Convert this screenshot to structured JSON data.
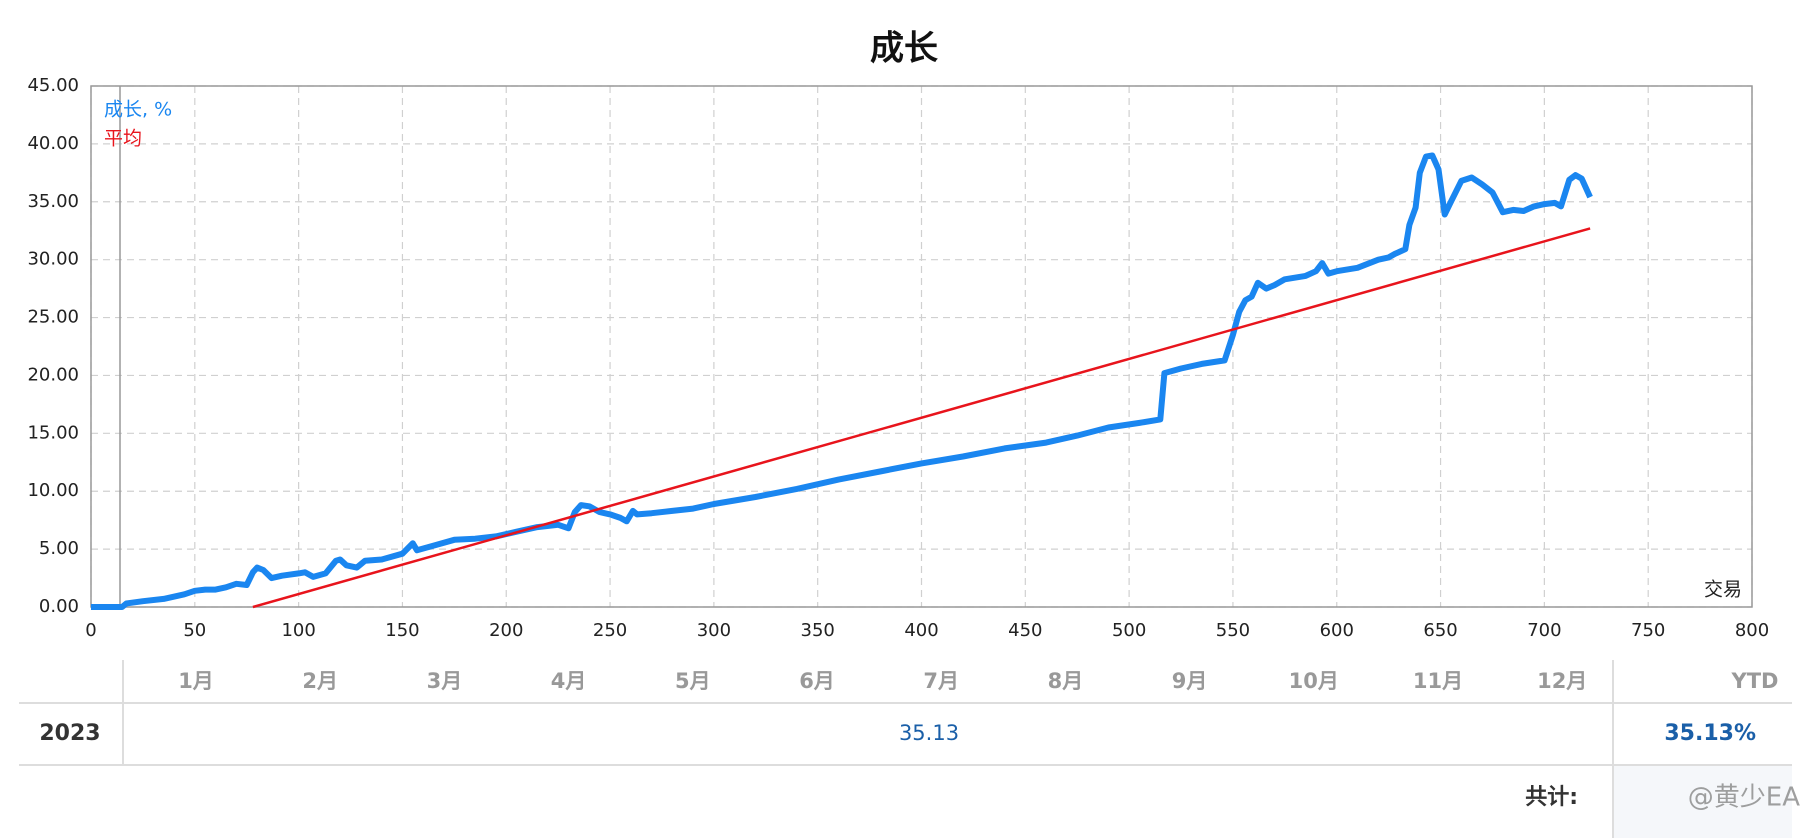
{
  "chart_data": {
    "type": "line",
    "title": "成长",
    "x_label": "交易",
    "xlim": [
      0,
      800
    ],
    "xticks": [
      0,
      50,
      100,
      150,
      200,
      250,
      300,
      350,
      400,
      450,
      500,
      550,
      600,
      650,
      700,
      750,
      800
    ],
    "ylim": [
      0,
      45
    ],
    "yticks": [
      {
        "value": 0,
        "label": "0.00"
      },
      {
        "value": 5,
        "label": "5.00"
      },
      {
        "value": 10,
        "label": "10.00"
      },
      {
        "value": 15,
        "label": "15.00"
      },
      {
        "value": 20,
        "label": "20.00"
      },
      {
        "value": 25,
        "label": "25.00"
      },
      {
        "value": 30,
        "label": "30.00"
      },
      {
        "value": 35,
        "label": "35.00"
      },
      {
        "value": 40,
        "label": "40.00"
      },
      {
        "value": 45,
        "label": "45.00"
      }
    ],
    "grid": true,
    "series": [
      {
        "name": "成长, %",
        "color": "#1a86f0",
        "x": [
          0,
          15,
          17,
          25,
          35,
          45,
          50,
          55,
          60,
          65,
          70,
          75,
          78,
          80,
          83,
          87,
          92,
          100,
          103,
          107,
          113,
          118,
          120,
          123,
          128,
          132,
          140,
          150,
          155,
          157,
          165,
          175,
          185,
          195,
          205,
          215,
          225,
          230,
          233,
          236,
          240,
          245,
          250,
          255,
          258,
          261,
          263,
          270,
          280,
          290,
          300,
          320,
          340,
          360,
          380,
          400,
          420,
          440,
          460,
          475,
          490,
          505,
          515,
          517,
          525,
          535,
          546,
          550,
          553,
          556,
          559,
          562,
          566,
          570,
          575,
          585,
          590,
          593,
          596,
          600,
          610,
          620,
          625,
          628,
          633,
          635,
          638,
          640,
          643,
          646,
          649,
          652,
          655,
          660,
          665,
          670,
          675,
          680,
          685,
          690,
          695,
          700,
          705,
          708,
          712,
          715,
          718,
          722
        ],
        "values": [
          0,
          0,
          0.3,
          0.5,
          0.7,
          1.1,
          1.4,
          1.5,
          1.5,
          1.7,
          2.0,
          1.9,
          3.0,
          3.4,
          3.2,
          2.5,
          2.7,
          2.9,
          3.0,
          2.6,
          2.9,
          4.0,
          4.1,
          3.6,
          3.4,
          4.0,
          4.1,
          4.6,
          5.5,
          4.9,
          5.3,
          5.8,
          5.9,
          6.1,
          6.5,
          6.9,
          7.1,
          6.8,
          8.2,
          8.8,
          8.7,
          8.2,
          8.0,
          7.7,
          7.4,
          8.3,
          8.0,
          8.1,
          8.3,
          8.5,
          8.9,
          9.5,
          10.2,
          11.0,
          11.7,
          12.4,
          13.0,
          13.7,
          14.2,
          14.8,
          15.5,
          15.9,
          16.2,
          20.2,
          20.6,
          21.0,
          21.3,
          23.5,
          25.5,
          26.5,
          26.8,
          28.0,
          27.5,
          27.8,
          28.3,
          28.6,
          29.0,
          29.7,
          28.8,
          29.0,
          29.3,
          30.0,
          30.2,
          30.5,
          30.9,
          33.0,
          34.5,
          37.5,
          38.9,
          39.0,
          37.8,
          33.9,
          35.0,
          36.8,
          37.1,
          36.5,
          35.8,
          34.1,
          34.3,
          34.2,
          34.6,
          34.8,
          34.9,
          34.6,
          36.9,
          37.3,
          37.0,
          35.4
        ]
      },
      {
        "name": "平均",
        "color": "#e8141c",
        "x": [
          78,
          722
        ],
        "values": [
          0,
          32.7
        ]
      }
    ]
  },
  "table": {
    "months": [
      "1月",
      "2月",
      "3月",
      "4月",
      "5月",
      "6月",
      "7月",
      "8月",
      "9月",
      "10月",
      "11月",
      "12月"
    ],
    "ytd_header": "YTD",
    "rows": [
      {
        "year": "2023",
        "value": 35.13,
        "ytd": "35.13%"
      }
    ],
    "total_label": "共计:"
  },
  "watermark": "@黄少EA"
}
